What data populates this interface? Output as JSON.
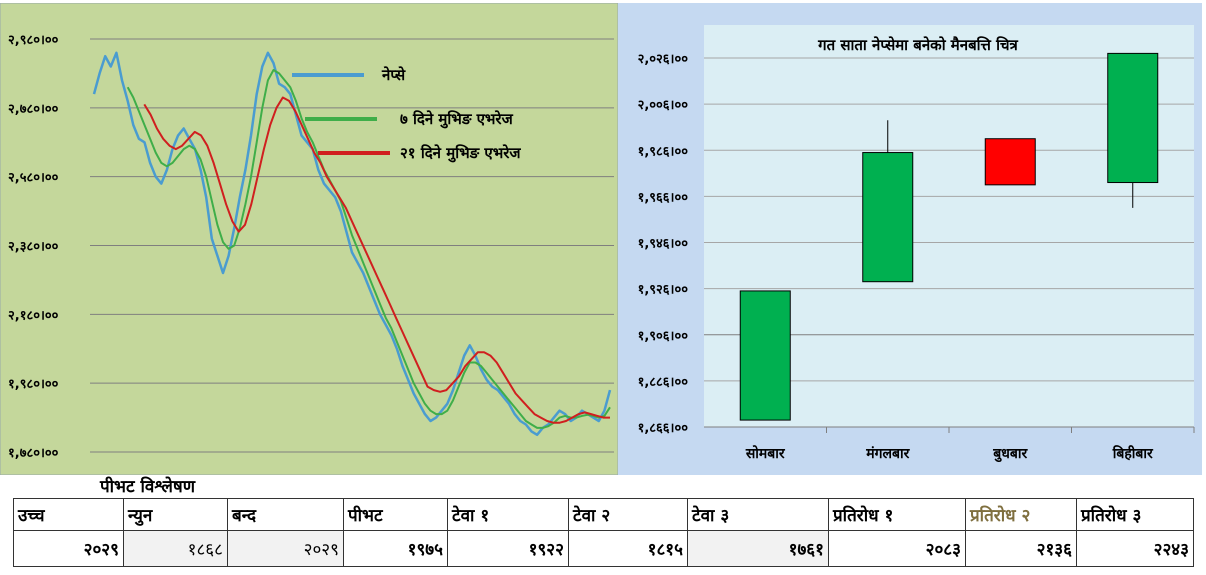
{
  "line_chart_data": {
    "type": "line",
    "yticks": [
      "२,९८०।००",
      "२,७८०।००",
      "२,५८०।००",
      "२,३८०।००",
      "२,१८०।००",
      "१,९८०।००",
      "१,७८०।००"
    ],
    "ylim": [
      1780,
      2980
    ],
    "legend": [
      {
        "name": "नेप्से",
        "color": "#4a9cd0"
      },
      {
        "name": "७ दिने मुभिङ एभरेज",
        "color": "#3fae49"
      },
      {
        "name": "२१ दिने मुभिङ एभरेज",
        "color": "#d01f1f"
      }
    ],
    "series": [
      {
        "name": "नेप्से",
        "values": [
          2820,
          2880,
          2930,
          2900,
          2940,
          2860,
          2800,
          2730,
          2690,
          2680,
          2620,
          2580,
          2560,
          2600,
          2660,
          2700,
          2720,
          2690,
          2660,
          2600,
          2520,
          2400,
          2350,
          2300,
          2350,
          2430,
          2520,
          2600,
          2700,
          2820,
          2900,
          2940,
          2910,
          2850,
          2840,
          2820,
          2760,
          2700,
          2680,
          2660,
          2600,
          2560,
          2540,
          2520,
          2480,
          2420,
          2360,
          2330,
          2300,
          2260,
          2220,
          2180,
          2150,
          2120,
          2080,
          2030,
          1990,
          1950,
          1920,
          1890,
          1870,
          1880,
          1900,
          1920,
          1960,
          2010,
          2060,
          2090,
          2060,
          2020,
          1990,
          1970,
          1960,
          1940,
          1920,
          1890,
          1870,
          1860,
          1840,
          1830,
          1850,
          1860,
          1880,
          1900,
          1890,
          1870,
          1880,
          1900,
          1890,
          1880,
          1870,
          1900,
          1960
        ]
      },
      {
        "name": "७ दिने मुभिङ एभरेज",
        "values": [
          null,
          null,
          null,
          null,
          null,
          null,
          2840,
          2810,
          2770,
          2730,
          2690,
          2650,
          2620,
          2610,
          2620,
          2640,
          2660,
          2670,
          2660,
          2630,
          2580,
          2510,
          2440,
          2390,
          2370,
          2380,
          2430,
          2500,
          2580,
          2680,
          2780,
          2860,
          2890,
          2880,
          2860,
          2840,
          2800,
          2750,
          2710,
          2680,
          2640,
          2600,
          2570,
          2540,
          2510,
          2460,
          2410,
          2370,
          2330,
          2290,
          2250,
          2210,
          2170,
          2140,
          2100,
          2060,
          2020,
          1980,
          1950,
          1920,
          1900,
          1890,
          1890,
          1900,
          1930,
          1970,
          2010,
          2040,
          2040,
          2030,
          2010,
          1990,
          1970,
          1950,
          1930,
          1910,
          1890,
          1870,
          1860,
          1850,
          1850,
          1855,
          1865,
          1880,
          1885,
          1880,
          1880,
          1885,
          1888,
          1885,
          1880,
          1885,
          1910
        ]
      },
      {
        "name": "२१ दिने मुभिङ एभरेज",
        "values": [
          null,
          null,
          null,
          null,
          null,
          null,
          null,
          null,
          2790,
          2760,
          2720,
          2690,
          2670,
          2660,
          2670,
          2690,
          2710,
          2700,
          2670,
          2620,
          2560,
          2500,
          2450,
          2420,
          2440,
          2500,
          2580,
          2660,
          2730,
          2780,
          2810,
          2800,
          2770,
          2730,
          2690,
          2650,
          2620,
          2580,
          2550,
          2520,
          2490,
          2450,
          2410,
          2370,
          2330,
          2290,
          2250,
          2210,
          2170,
          2130,
          2090,
          2050,
          2010,
          1970,
          1960,
          1955,
          1960,
          1980,
          2000,
          2030,
          2050,
          2070,
          2070,
          2060,
          2040,
          2010,
          1980,
          1950,
          1930,
          1910,
          1890,
          1880,
          1870,
          1865,
          1865,
          1870,
          1880,
          1890,
          1895,
          1890,
          1885,
          1880,
          1880
        ]
      }
    ]
  },
  "candle_chart_data": {
    "type": "candlestick",
    "title": "गत साता नेप्सेमा बनेको मैनबत्ति चित्र",
    "yticks": [
      "२,०२६।००",
      "२,००६।००",
      "१,९८६।००",
      "१,९६६।००",
      "१,९४६।००",
      "१,९२६।००",
      "१,९०६।००",
      "१,८८६।००",
      "१,८६६।००"
    ],
    "ylim": [
      1866,
      2026
    ],
    "categories": [
      "सोमबार",
      "मंगलबार",
      "बुधबार",
      "बिहीबार"
    ],
    "candles": [
      {
        "open": 1869,
        "close": 1925,
        "high": 1925,
        "low": 1869,
        "color": "#00b050"
      },
      {
        "open": 1929,
        "close": 1985,
        "high": 1999,
        "low": 1929,
        "color": "#00b050"
      },
      {
        "open": 1991,
        "close": 1971,
        "high": 1991,
        "low": 1971,
        "color": "#ff0000"
      },
      {
        "open": 1972,
        "close": 2028,
        "high": 2028,
        "low": 1961,
        "color": "#00b050"
      }
    ]
  },
  "pivot": {
    "title": "पीभट विश्लेषण",
    "headers": [
      "उच्च",
      "न्युन",
      "बन्द",
      "पीभट",
      "टेवा १",
      "टेवा २",
      "टेवा ३",
      "प्रतिरोध १",
      "प्रतिरोध २",
      "प्रतिरोध ३"
    ],
    "values": [
      "२०२९",
      "१८६८",
      "२०२९",
      "१९७५",
      "१९२२",
      "१८१५",
      "१७६१",
      "२०८३",
      "२१३६",
      "२२४३"
    ]
  }
}
